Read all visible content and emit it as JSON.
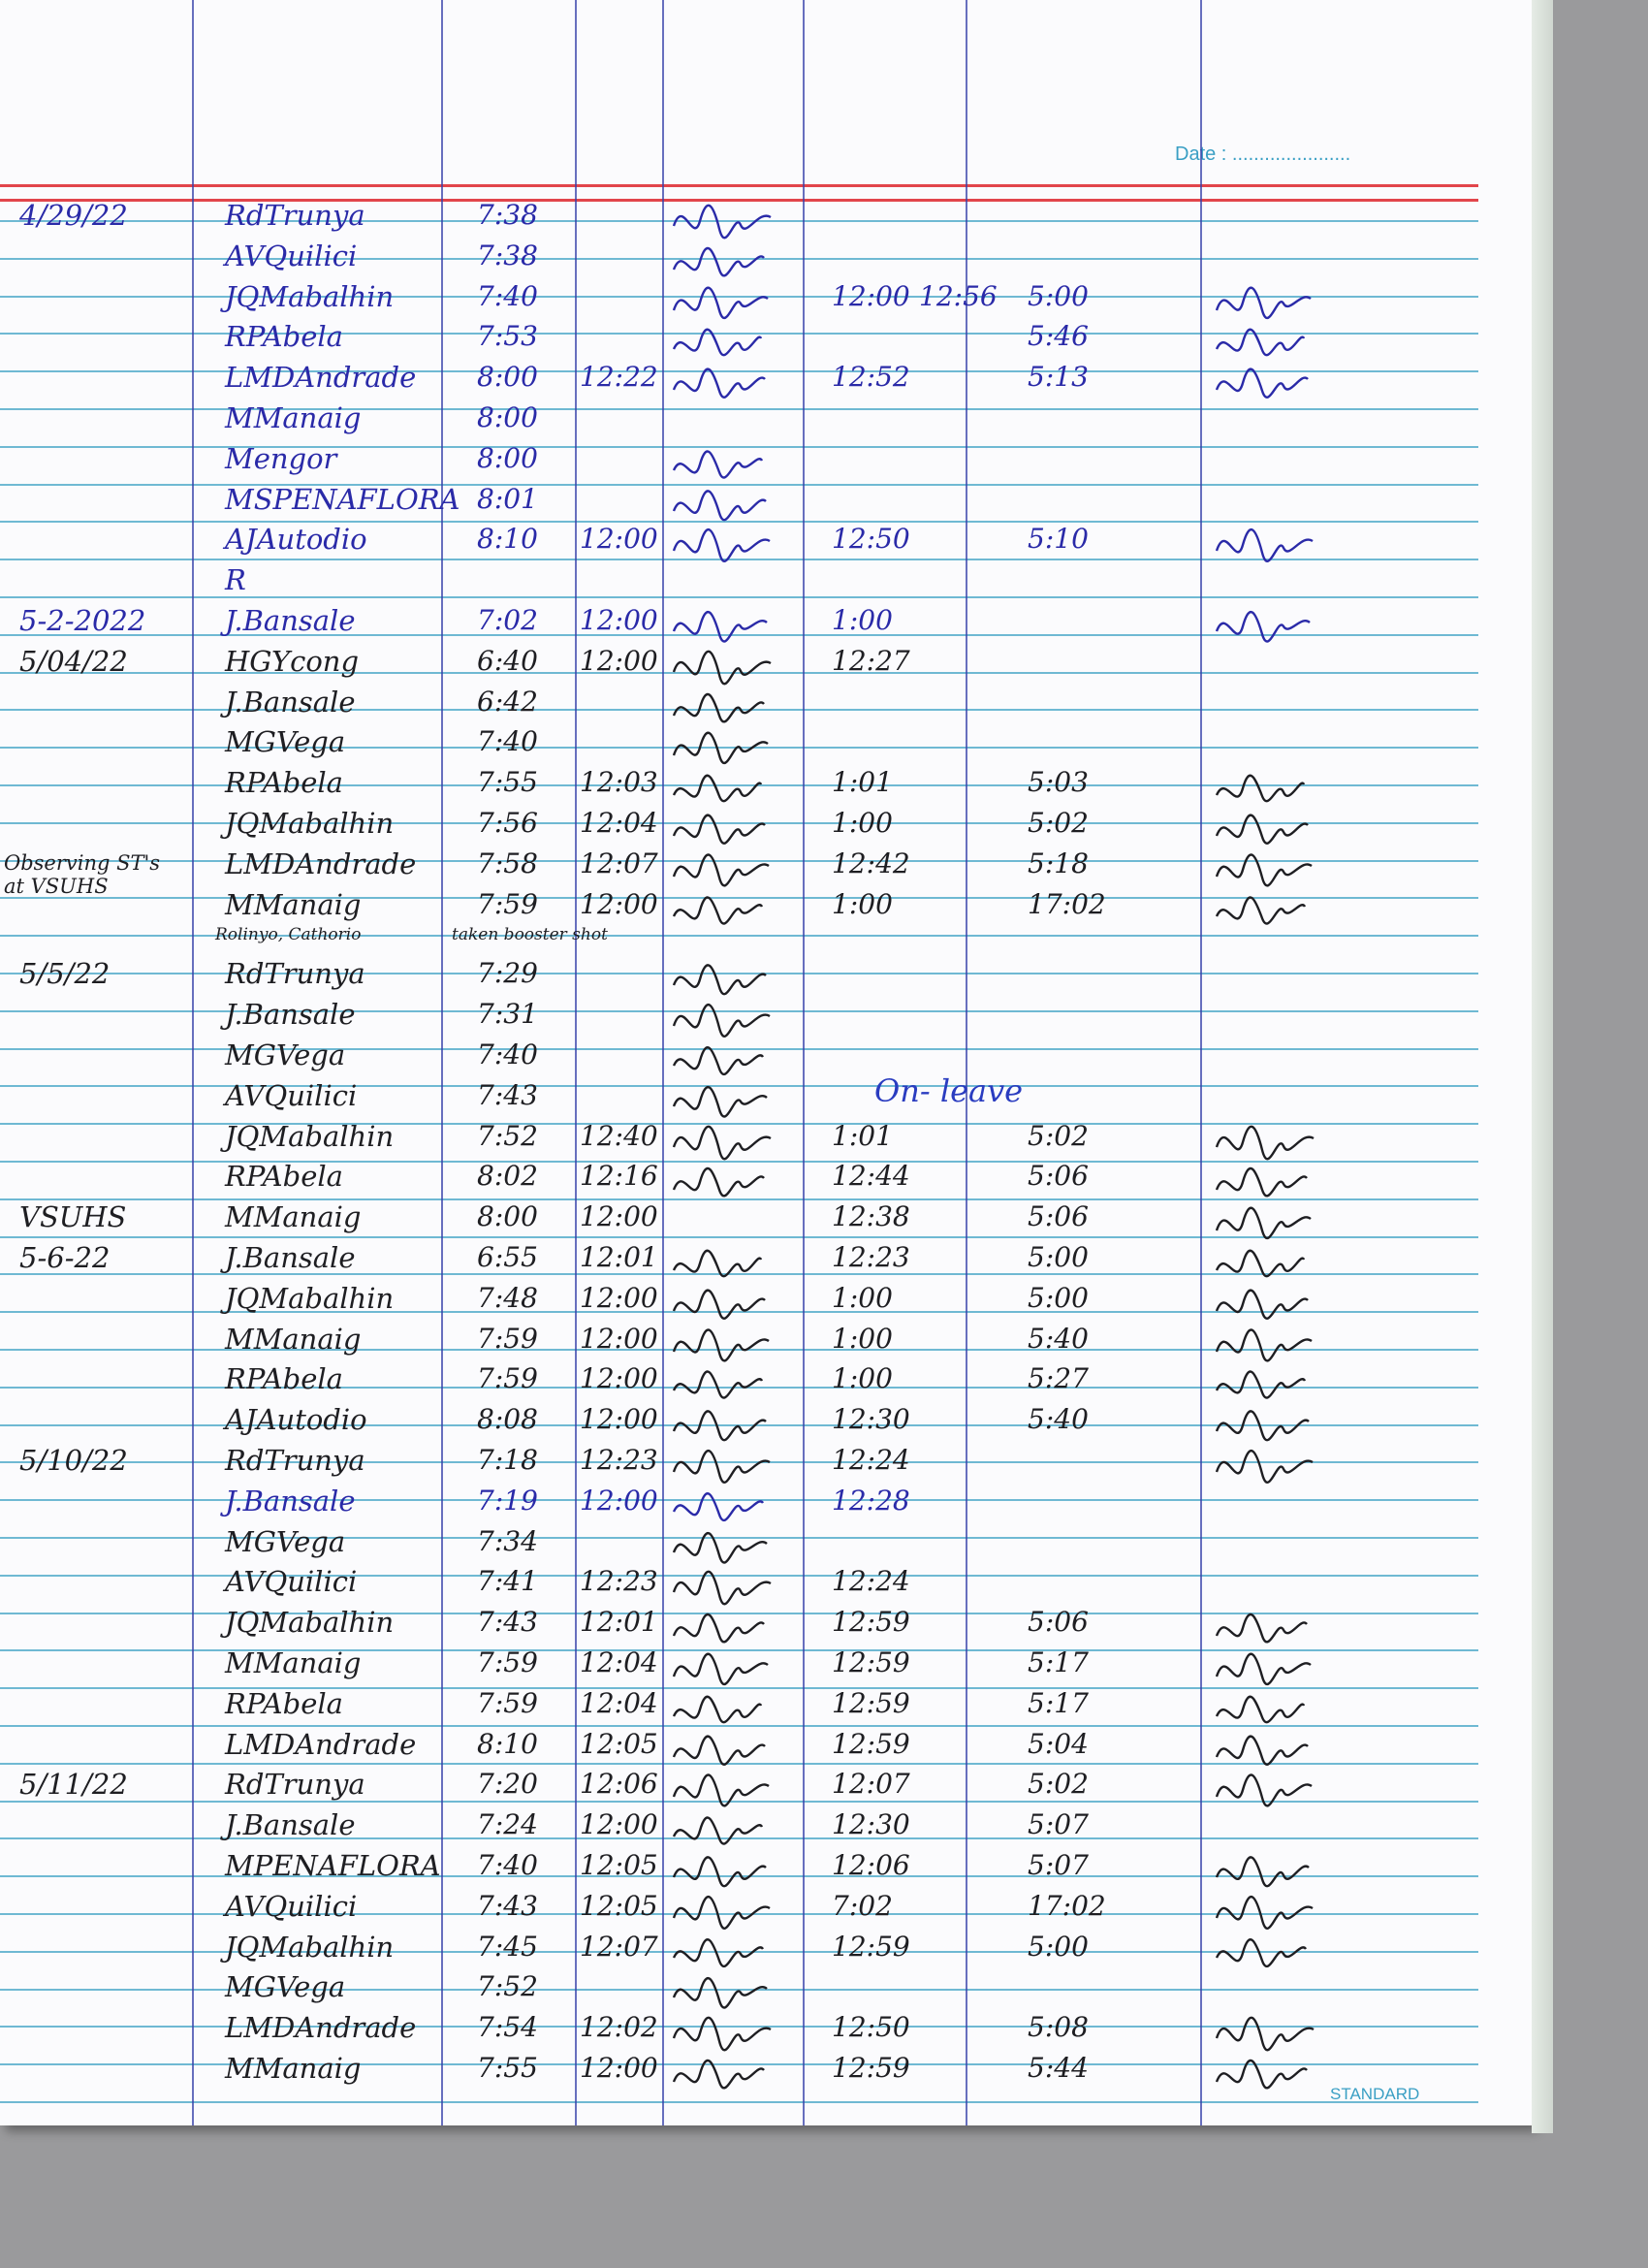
{
  "header": {
    "date_label": "Date : ......................",
    "brand": "STANDARD"
  },
  "colors": {
    "blue_ink": "#2a2aa8",
    "black_ink": "#1e1e22",
    "rule_blue": "#6fb9d3",
    "margin_red": "#e2454b"
  },
  "annotations": {
    "on_leave": "On- leave",
    "booster": "taken booster shot",
    "observing": "Observing ST's at VSUHS",
    "substitute": "Rolinyo, Cathorio"
  },
  "rows": [
    {
      "date": "4/29/22",
      "name": "RdTrunya",
      "am_in": "7:38",
      "am_out": "",
      "pm_in": "",
      "pm_mid": "",
      "pm_out": "",
      "sig1": true,
      "sig2": false,
      "ink": "blue"
    },
    {
      "date": "",
      "name": "AVQuilici",
      "am_in": "7:38",
      "am_out": "",
      "pm_in": "",
      "pm_mid": "",
      "pm_out": "",
      "sig1": true,
      "sig2": false,
      "ink": "blue"
    },
    {
      "date": "",
      "name": "JQMabalhin",
      "am_in": "7:40",
      "am_out": "",
      "pm_in": "12:00",
      "pm_mid": "12:56",
      "pm_out": "5:00",
      "sig1": true,
      "sig2": true,
      "ink": "blue"
    },
    {
      "date": "",
      "name": "RPAbela",
      "am_in": "7:53",
      "am_out": "",
      "pm_in": "",
      "pm_mid": "",
      "pm_out": "5:46",
      "sig1": true,
      "sig2": true,
      "ink": "blue"
    },
    {
      "date": "",
      "name": "LMDAndrade",
      "am_in": "8:00",
      "am_out": "12:22",
      "pm_in": "12:52",
      "pm_mid": "",
      "pm_out": "5:13",
      "sig1": true,
      "sig2": true,
      "ink": "blue"
    },
    {
      "date": "",
      "name": "MManaig",
      "am_in": "8:00",
      "am_out": "",
      "pm_in": "",
      "pm_mid": "",
      "pm_out": "",
      "sig1": false,
      "sig2": false,
      "ink": "blue"
    },
    {
      "date": "",
      "name": "Mengor",
      "am_in": "8:00",
      "am_out": "",
      "pm_in": "",
      "pm_mid": "",
      "pm_out": "",
      "sig1": true,
      "sig2": false,
      "ink": "blue"
    },
    {
      "date": "",
      "name": "MSPENAFLORA",
      "am_in": "8:01",
      "am_out": "",
      "pm_in": "",
      "pm_mid": "",
      "pm_out": "",
      "sig1": true,
      "sig2": false,
      "ink": "blue"
    },
    {
      "date": "",
      "name": "AJAutodio",
      "am_in": "8:10",
      "am_out": "12:00",
      "pm_in": "12:50",
      "pm_mid": "",
      "pm_out": "5:10",
      "sig1": true,
      "sig2": true,
      "ink": "blue"
    },
    {
      "date": "",
      "name": "R",
      "am_in": "",
      "am_out": "",
      "pm_in": "",
      "pm_mid": "",
      "pm_out": "",
      "sig1": false,
      "sig2": false,
      "ink": "blue"
    },
    {
      "date": "5-2-2022",
      "name": "J.Bansale",
      "am_in": "7:02",
      "am_out": "12:00",
      "pm_in": "1:00",
      "pm_mid": "",
      "pm_out": "",
      "sig1": true,
      "sig2": true,
      "ink": "blue"
    },
    {
      "date": "5/04/22",
      "name": "HGYcong",
      "am_in": "6:40",
      "am_out": "12:00",
      "pm_in": "12:27",
      "pm_mid": "",
      "pm_out": "",
      "sig1": true,
      "sig2": false,
      "ink": "black"
    },
    {
      "date": "",
      "name": "J.Bansale",
      "am_in": "6:42",
      "am_out": "",
      "pm_in": "",
      "pm_mid": "",
      "pm_out": "",
      "sig1": true,
      "sig2": false,
      "ink": "black"
    },
    {
      "date": "",
      "name": "MGVega",
      "am_in": "7:40",
      "am_out": "",
      "pm_in": "",
      "pm_mid": "",
      "pm_out": "",
      "sig1": true,
      "sig2": false,
      "ink": "black"
    },
    {
      "date": "",
      "name": "RPAbela",
      "am_in": "7:55",
      "am_out": "12:03",
      "pm_in": "1:01",
      "pm_mid": "",
      "pm_out": "5:03",
      "sig1": true,
      "sig2": true,
      "ink": "black"
    },
    {
      "date": "",
      "name": "JQMabalhin",
      "am_in": "7:56",
      "am_out": "12:04",
      "pm_in": "1:00",
      "pm_mid": "",
      "pm_out": "5:02",
      "sig1": true,
      "sig2": true,
      "ink": "black"
    },
    {
      "date": "",
      "name": "LMDAndrade",
      "am_in": "7:58",
      "am_out": "12:07",
      "pm_in": "12:42",
      "pm_mid": "",
      "pm_out": "5:18",
      "sig1": true,
      "sig2": true,
      "ink": "black"
    },
    {
      "date": "",
      "name": "MManaig",
      "am_in": "7:59",
      "am_out": "12:00",
      "pm_in": "1:00",
      "pm_mid": "",
      "pm_out": "17:02",
      "sig1": true,
      "sig2": true,
      "ink": "black"
    },
    {
      "date": "5/5/22",
      "name": "RdTrunya",
      "am_in": "7:29",
      "am_out": "",
      "pm_in": "",
      "pm_mid": "",
      "pm_out": "",
      "sig1": true,
      "sig2": false,
      "ink": "black"
    },
    {
      "date": "",
      "name": "J.Bansale",
      "am_in": "7:31",
      "am_out": "",
      "pm_in": "",
      "pm_mid": "",
      "pm_out": "",
      "sig1": true,
      "sig2": false,
      "ink": "black"
    },
    {
      "date": "",
      "name": "MGVega",
      "am_in": "7:40",
      "am_out": "",
      "pm_in": "",
      "pm_mid": "",
      "pm_out": "",
      "sig1": true,
      "sig2": false,
      "ink": "black"
    },
    {
      "date": "",
      "name": "AVQuilici",
      "am_in": "7:43",
      "am_out": "",
      "pm_in": "",
      "pm_mid": "",
      "pm_out": "",
      "sig1": true,
      "sig2": false,
      "ink": "black"
    },
    {
      "date": "",
      "name": "JQMabalhin",
      "am_in": "7:52",
      "am_out": "12:40",
      "pm_in": "1:01",
      "pm_mid": "",
      "pm_out": "5:02",
      "sig1": true,
      "sig2": true,
      "ink": "black"
    },
    {
      "date": "",
      "name": "RPAbela",
      "am_in": "8:02",
      "am_out": "12:16",
      "pm_in": "12:44",
      "pm_mid": "",
      "pm_out": "5:06",
      "sig1": true,
      "sig2": true,
      "ink": "black"
    },
    {
      "date": "VSUHS",
      "name": "MManaig",
      "am_in": "8:00",
      "am_out": "12:00",
      "pm_in": "12:38",
      "pm_mid": "",
      "pm_out": "5:06",
      "sig1": false,
      "sig2": true,
      "ink": "black"
    },
    {
      "date": "5-6-22",
      "name": "J.Bansale",
      "am_in": "6:55",
      "am_out": "12:01",
      "pm_in": "12:23",
      "pm_mid": "",
      "pm_out": "5:00",
      "sig1": true,
      "sig2": true,
      "ink": "black"
    },
    {
      "date": "",
      "name": "JQMabalhin",
      "am_in": "7:48",
      "am_out": "12:00",
      "pm_in": "1:00",
      "pm_mid": "",
      "pm_out": "5:00",
      "sig1": true,
      "sig2": true,
      "ink": "black"
    },
    {
      "date": "",
      "name": "MManaig",
      "am_in": "7:59",
      "am_out": "12:00",
      "pm_in": "1:00",
      "pm_mid": "",
      "pm_out": "5:40",
      "sig1": true,
      "sig2": true,
      "ink": "black"
    },
    {
      "date": "",
      "name": "RPAbela",
      "am_in": "7:59",
      "am_out": "12:00",
      "pm_in": "1:00",
      "pm_mid": "",
      "pm_out": "5:27",
      "sig1": true,
      "sig2": true,
      "ink": "black"
    },
    {
      "date": "",
      "name": "AJAutodio",
      "am_in": "8:08",
      "am_out": "12:00",
      "pm_in": "12:30",
      "pm_mid": "",
      "pm_out": "5:40",
      "sig1": true,
      "sig2": true,
      "ink": "black"
    },
    {
      "date": "5/10/22",
      "name": "RdTrunya",
      "am_in": "7:18",
      "am_out": "12:23",
      "pm_in": "12:24",
      "pm_mid": "",
      "pm_out": "",
      "sig1": true,
      "sig2": true,
      "ink": "black"
    },
    {
      "date": "",
      "name": "J.Bansale",
      "am_in": "7:19",
      "am_out": "12:00",
      "pm_in": "12:28",
      "pm_mid": "",
      "pm_out": "",
      "sig1": true,
      "sig2": false,
      "ink": "blue"
    },
    {
      "date": "",
      "name": "MGVega",
      "am_in": "7:34",
      "am_out": "",
      "pm_in": "",
      "pm_mid": "",
      "pm_out": "",
      "sig1": true,
      "sig2": false,
      "ink": "black"
    },
    {
      "date": "",
      "name": "AVQuilici",
      "am_in": "7:41",
      "am_out": "12:23",
      "pm_in": "12:24",
      "pm_mid": "",
      "pm_out": "",
      "sig1": true,
      "sig2": false,
      "ink": "black"
    },
    {
      "date": "",
      "name": "JQMabalhin",
      "am_in": "7:43",
      "am_out": "12:01",
      "pm_in": "12:59",
      "pm_mid": "",
      "pm_out": "5:06",
      "sig1": true,
      "sig2": true,
      "ink": "black"
    },
    {
      "date": "",
      "name": "MManaig",
      "am_in": "7:59",
      "am_out": "12:04",
      "pm_in": "12:59",
      "pm_mid": "",
      "pm_out": "5:17",
      "sig1": true,
      "sig2": true,
      "ink": "black"
    },
    {
      "date": "",
      "name": "RPAbela",
      "am_in": "7:59",
      "am_out": "12:04",
      "pm_in": "12:59",
      "pm_mid": "",
      "pm_out": "5:17",
      "sig1": true,
      "sig2": true,
      "ink": "black"
    },
    {
      "date": "",
      "name": "LMDAndrade",
      "am_in": "8:10",
      "am_out": "12:05",
      "pm_in": "12:59",
      "pm_mid": "",
      "pm_out": "5:04",
      "sig1": true,
      "sig2": true,
      "ink": "black"
    },
    {
      "date": "5/11/22",
      "name": "RdTrunya",
      "am_in": "7:20",
      "am_out": "12:06",
      "pm_in": "12:07",
      "pm_mid": "",
      "pm_out": "5:02",
      "sig1": true,
      "sig2": true,
      "ink": "black"
    },
    {
      "date": "",
      "name": "J.Bansale",
      "am_in": "7:24",
      "am_out": "12:00",
      "pm_in": "12:30",
      "pm_mid": "",
      "pm_out": "5:07",
      "sig1": true,
      "sig2": false,
      "ink": "black"
    },
    {
      "date": "",
      "name": "MPENAFLORA",
      "am_in": "7:40",
      "am_out": "12:05",
      "pm_in": "12:06",
      "pm_mid": "",
      "pm_out": "5:07",
      "sig1": true,
      "sig2": true,
      "ink": "black"
    },
    {
      "date": "",
      "name": "AVQuilici",
      "am_in": "7:43",
      "am_out": "12:05",
      "pm_in": "7:02",
      "pm_mid": "",
      "pm_out": "17:02",
      "sig1": true,
      "sig2": true,
      "ink": "black"
    },
    {
      "date": "",
      "name": "JQMabalhin",
      "am_in": "7:45",
      "am_out": "12:07",
      "pm_in": "12:59",
      "pm_mid": "",
      "pm_out": "5:00",
      "sig1": true,
      "sig2": true,
      "ink": "black"
    },
    {
      "date": "",
      "name": "MGVega",
      "am_in": "7:52",
      "am_out": "",
      "pm_in": "",
      "pm_mid": "",
      "pm_out": "",
      "sig1": true,
      "sig2": false,
      "ink": "black"
    },
    {
      "date": "",
      "name": "LMDAndrade",
      "am_in": "7:54",
      "am_out": "12:02",
      "pm_in": "12:50",
      "pm_mid": "",
      "pm_out": "5:08",
      "sig1": true,
      "sig2": true,
      "ink": "black"
    },
    {
      "date": "",
      "name": "MManaig",
      "am_in": "7:55",
      "am_out": "12:00",
      "pm_in": "12:59",
      "pm_mid": "",
      "pm_out": "5:44",
      "sig1": true,
      "sig2": true,
      "ink": "black"
    }
  ]
}
